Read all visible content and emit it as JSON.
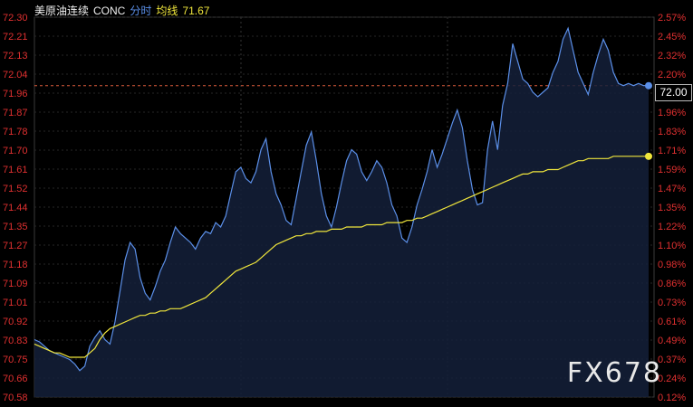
{
  "header": {
    "instrument": "美原油连续",
    "code": "CONC",
    "mode": "分时",
    "avg_label": "均线",
    "avg_value": "71.67"
  },
  "last_price_label": "72.00",
  "watermark": "FX678",
  "colors": {
    "background": "#000000",
    "price_line": "#5b8fe8",
    "avg_line": "#f0e63c",
    "axis_text": "#e03030",
    "grid": "#2a2a2a",
    "ref_line": "#d85a3a"
  },
  "chart_data": {
    "type": "line",
    "y_left_ticks": [
      "72.30",
      "72.21",
      "72.13",
      "72.04",
      "71.96",
      "71.87",
      "71.78",
      "71.70",
      "71.61",
      "71.52",
      "71.44",
      "71.35",
      "71.27",
      "71.18",
      "71.09",
      "71.01",
      "70.92",
      "70.83",
      "70.75",
      "70.66",
      "70.58"
    ],
    "y_right_ticks": [
      "2.57%",
      "2.45%",
      "2.32%",
      "2.20%",
      "2.08%",
      "1.96%",
      "1.83%",
      "1.71%",
      "1.59%",
      "1.47%",
      "1.35%",
      "1.22%",
      "1.10%",
      "0.98%",
      "0.86%",
      "0.73%",
      "0.61%",
      "0.49%",
      "0.37%",
      "0.24%",
      "0.12%"
    ],
    "ylim": [
      70.58,
      72.3
    ],
    "reference_price": 71.99,
    "series": [
      {
        "values": [
          70.84,
          70.83,
          70.81,
          70.79,
          70.78,
          70.77,
          70.76,
          70.75,
          70.73,
          70.7,
          70.72,
          70.81,
          70.85,
          70.88,
          70.84,
          70.82,
          70.92,
          71.06,
          71.2,
          71.28,
          71.25,
          71.12,
          71.05,
          71.02,
          71.08,
          71.15,
          71.2,
          71.28,
          71.35,
          71.32,
          71.3,
          71.28,
          71.25,
          71.3,
          71.33,
          71.32,
          71.37,
          71.35,
          71.4,
          71.5,
          71.6,
          71.62,
          71.57,
          71.55,
          71.6,
          71.7,
          71.75,
          71.6,
          71.5,
          71.45,
          71.38,
          71.36,
          71.48,
          71.6,
          71.72,
          71.78,
          71.65,
          71.5,
          71.4,
          71.35,
          71.44,
          71.55,
          71.65,
          71.7,
          71.68,
          71.6,
          71.56,
          71.6,
          71.65,
          71.62,
          71.55,
          71.45,
          71.4,
          71.3,
          71.28,
          71.35,
          71.45,
          71.52,
          71.6,
          71.7,
          71.62,
          71.68,
          71.75,
          71.82,
          71.88,
          71.8,
          71.65,
          71.52,
          71.45,
          71.46,
          71.7,
          71.83,
          71.7,
          71.9,
          72.0,
          72.18,
          72.1,
          72.02,
          72.0,
          71.96,
          71.94,
          71.96,
          71.98,
          72.05,
          72.1,
          72.2,
          72.25,
          72.15,
          72.05,
          72.0,
          71.95,
          72.05,
          72.13,
          72.2,
          72.15,
          72.05,
          72.0,
          71.99,
          72.0,
          71.99,
          72.0,
          71.99,
          71.99
        ]
      },
      {
        "values": [
          70.82,
          70.81,
          70.8,
          70.79,
          70.78,
          70.78,
          70.77,
          70.76,
          70.76,
          70.76,
          70.76,
          70.78,
          70.8,
          70.84,
          70.87,
          70.89,
          70.9,
          70.91,
          70.92,
          70.93,
          70.94,
          70.95,
          70.95,
          70.96,
          70.96,
          70.97,
          70.97,
          70.98,
          70.98,
          70.98,
          70.99,
          71.0,
          71.01,
          71.02,
          71.03,
          71.05,
          71.07,
          71.09,
          71.11,
          71.13,
          71.15,
          71.16,
          71.17,
          71.18,
          71.19,
          71.21,
          71.23,
          71.25,
          71.27,
          71.28,
          71.29,
          71.3,
          71.31,
          71.31,
          71.32,
          71.32,
          71.33,
          71.33,
          71.33,
          71.34,
          71.34,
          71.34,
          71.35,
          71.35,
          71.35,
          71.35,
          71.36,
          71.36,
          71.36,
          71.36,
          71.37,
          71.37,
          71.37,
          71.37,
          71.38,
          71.38,
          71.39,
          71.39,
          71.4,
          71.41,
          71.42,
          71.43,
          71.44,
          71.45,
          71.46,
          71.47,
          71.48,
          71.49,
          71.5,
          71.51,
          71.52,
          71.53,
          71.54,
          71.55,
          71.56,
          71.57,
          71.58,
          71.59,
          71.59,
          71.6,
          71.6,
          71.6,
          71.61,
          71.61,
          71.61,
          71.62,
          71.63,
          71.64,
          71.65,
          71.65,
          71.66,
          71.66,
          71.66,
          71.66,
          71.66,
          71.67,
          71.67,
          71.67,
          71.67,
          71.67,
          71.67,
          71.67,
          71.67
        ]
      }
    ],
    "grid": true
  }
}
